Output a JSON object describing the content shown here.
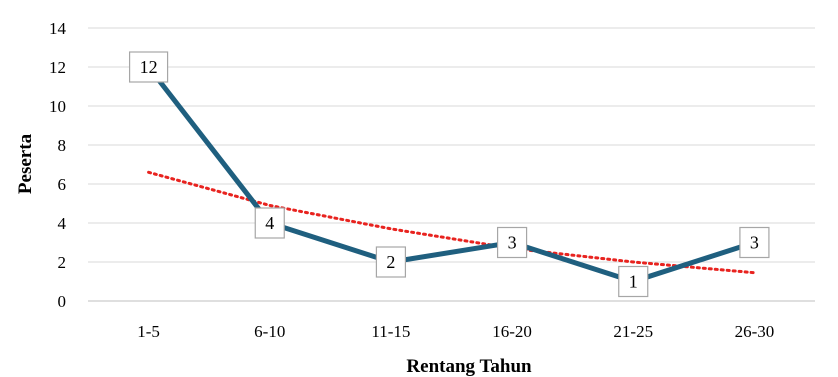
{
  "chart_data": {
    "type": "line",
    "categories": [
      "1-5",
      "6-10",
      "11-15",
      "16-20",
      "21-25",
      "26-30"
    ],
    "values": [
      12,
      4,
      2,
      3,
      1,
      3
    ],
    "data_labels": [
      "12",
      "4",
      "2",
      "3",
      "1",
      "3"
    ],
    "trendline": {
      "kind": "exponential",
      "style": "dotted",
      "values": [
        6.6,
        4.9,
        3.7,
        2.7,
        2.0,
        1.45
      ]
    },
    "xlabel": "Rentang Tahun",
    "ylabel": "Peserta",
    "ylim": [
      0,
      14
    ],
    "y_ticks": [
      "0",
      "2",
      "4",
      "6",
      "8",
      "10",
      "12",
      "14"
    ],
    "grid": true,
    "legend": "none",
    "colors": {
      "series": "#1f5f7f",
      "trendline": "#e8231f",
      "grid": "#d9d9d9",
      "label_border": "#a6a6a6"
    }
  }
}
